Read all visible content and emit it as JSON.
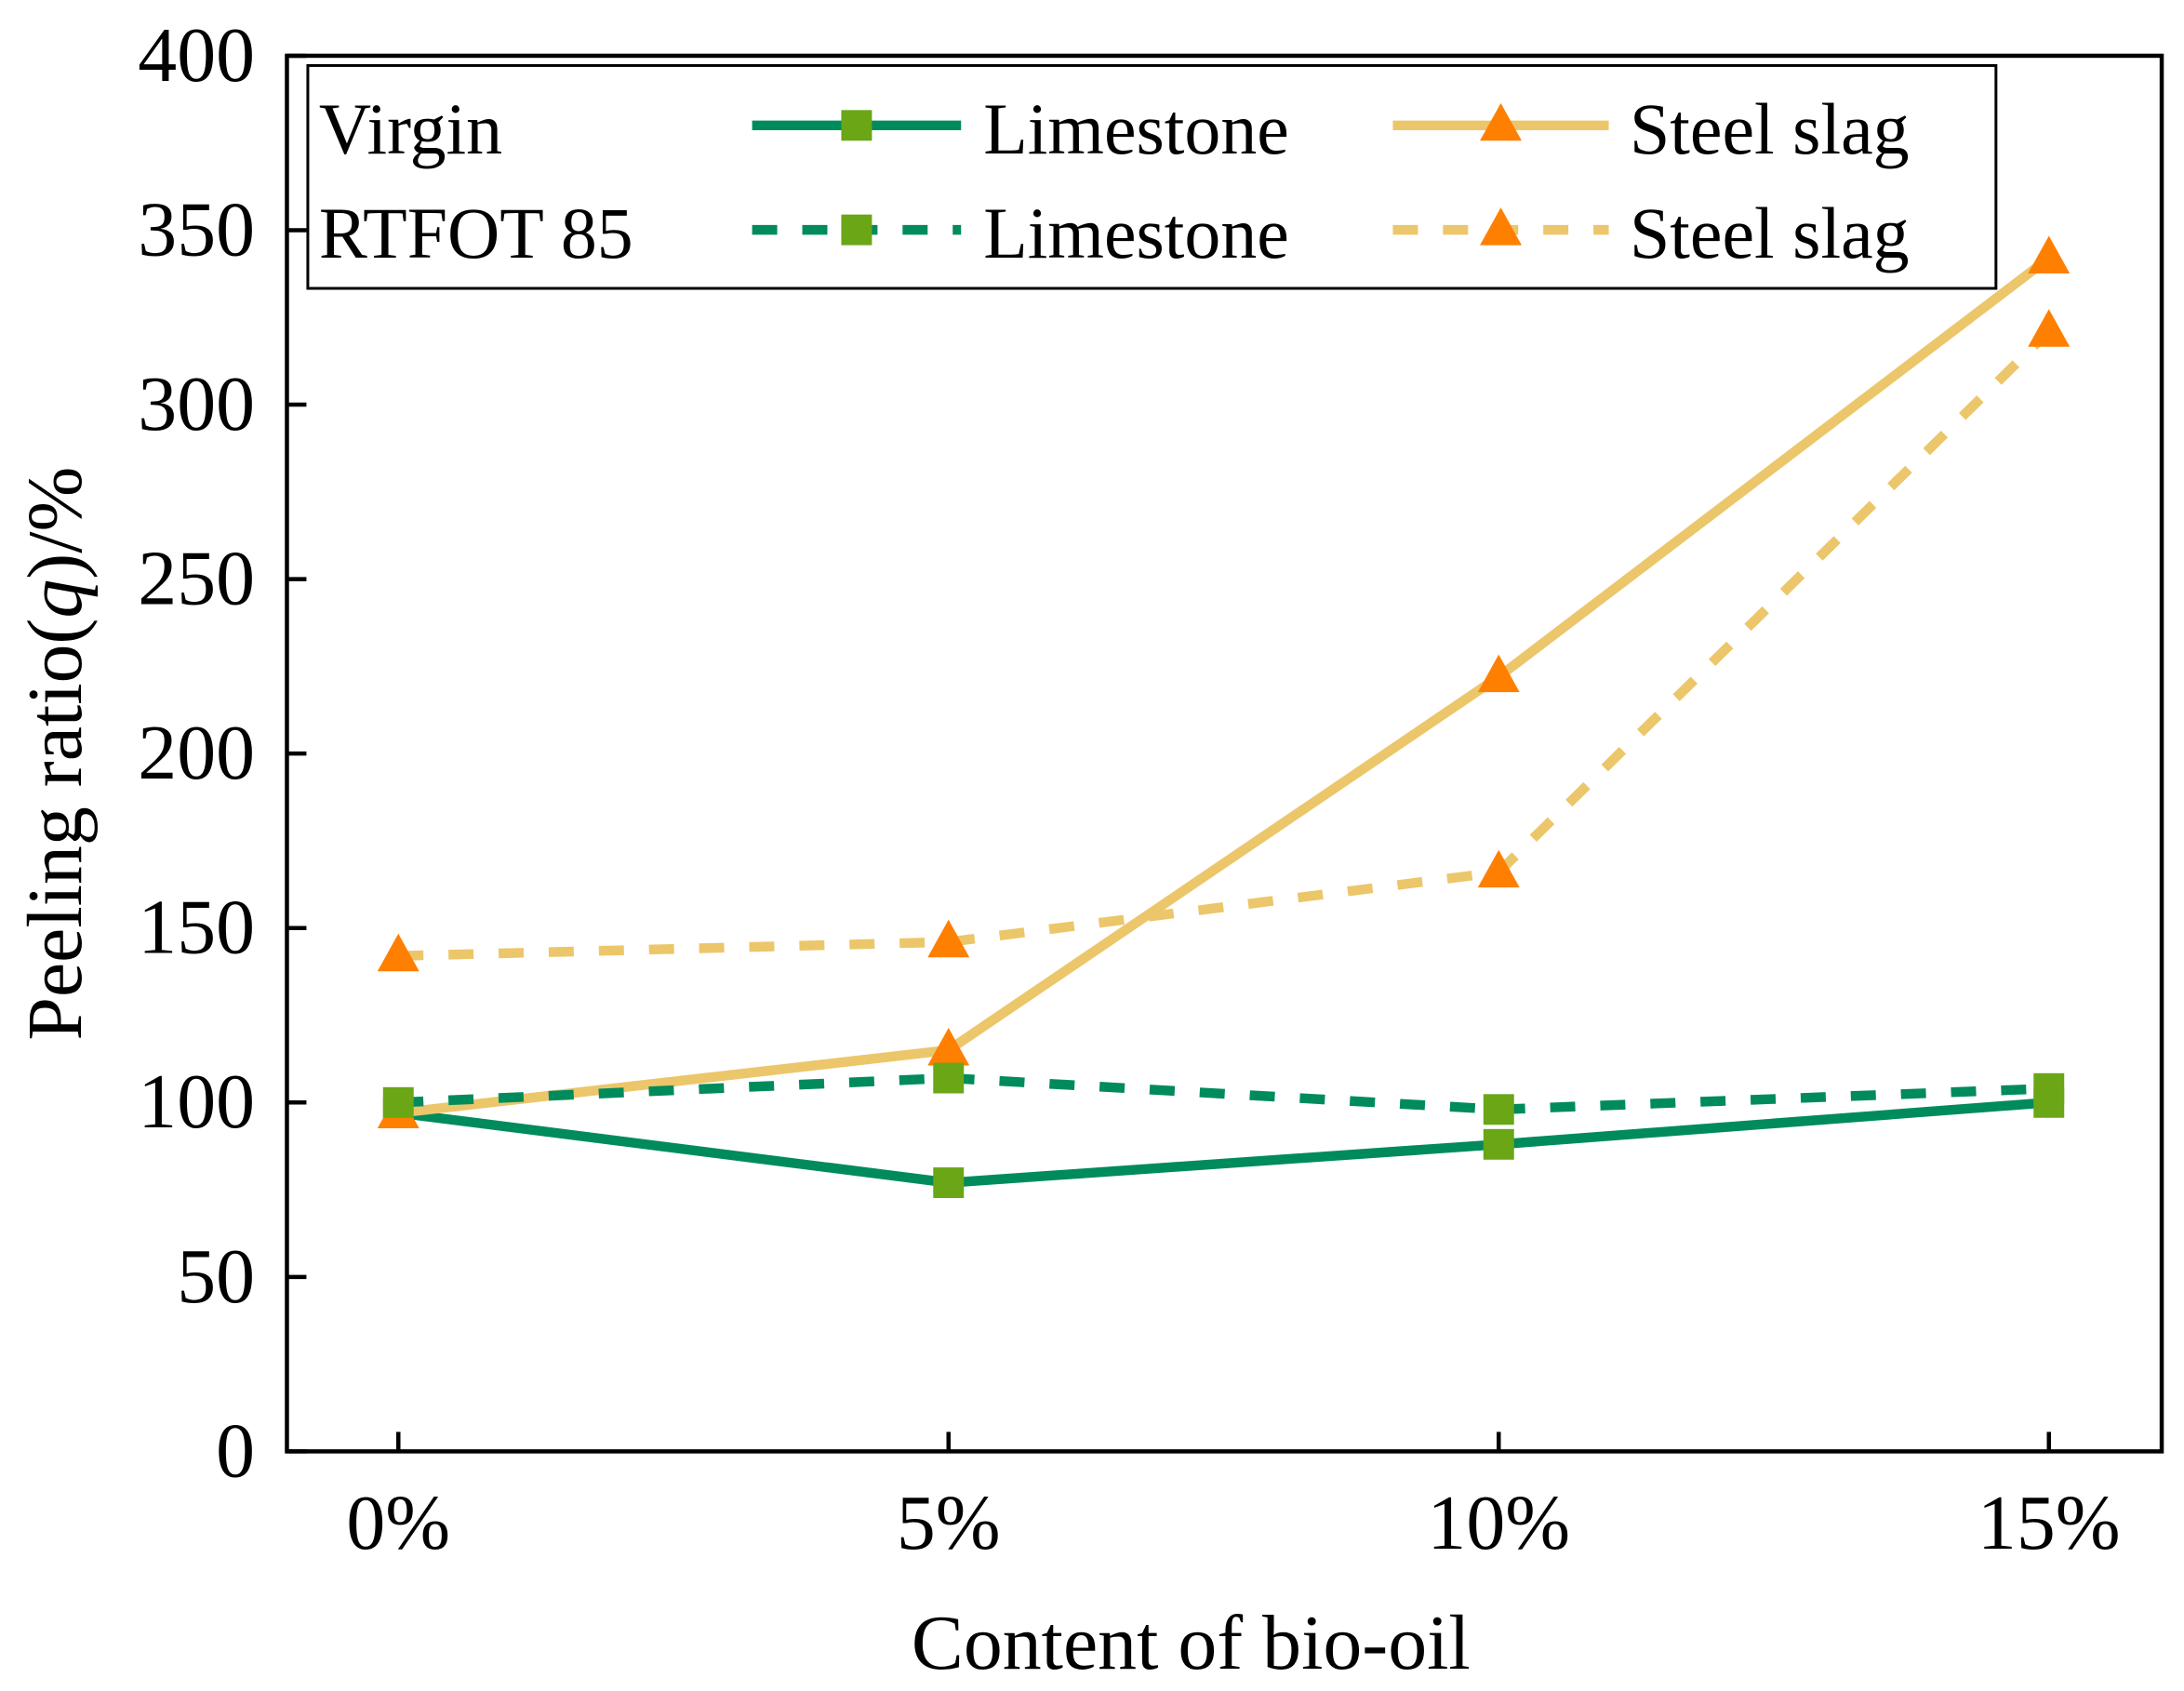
{
  "chart_data": {
    "type": "line",
    "title": "",
    "xlabel": "Content of bio-oil",
    "ylabel_parts": [
      "Peeling ratio(",
      "q",
      ")/%"
    ],
    "categories": [
      "0%",
      "5%",
      "10%",
      "15%"
    ],
    "ylim": [
      0,
      400
    ],
    "yticks": [
      "0",
      "50",
      "100",
      "150",
      "200",
      "250",
      "300",
      "350",
      "400"
    ],
    "grid": false,
    "legend_placement": "top-left",
    "legend_groups": [
      "Virgin",
      "RTFOT 85"
    ],
    "series": [
      {
        "name": "Limestone",
        "group": "Virgin",
        "style": "solid",
        "marker": "square",
        "line_color": "#008B5C",
        "marker_color": "#6AA616",
        "values": [
          97,
          77,
          88,
          100
        ]
      },
      {
        "name": "Steel slag",
        "group": "Virgin",
        "style": "solid",
        "marker": "triangle",
        "line_color": "#ECC66A",
        "marker_color": "#FF7F00",
        "values": [
          97,
          115,
          222,
          342
        ]
      },
      {
        "name": "Limestone",
        "group": "RTFOT 85",
        "style": "dashed",
        "marker": "square",
        "line_color": "#008B5C",
        "marker_color": "#6AA616",
        "values": [
          100,
          107,
          98,
          104
        ]
      },
      {
        "name": "Steel slag",
        "group": "RTFOT 85",
        "style": "dashed",
        "marker": "triangle",
        "line_color": "#ECC66A",
        "marker_color": "#FF7F00",
        "values": [
          142,
          146,
          166,
          321
        ]
      }
    ]
  }
}
